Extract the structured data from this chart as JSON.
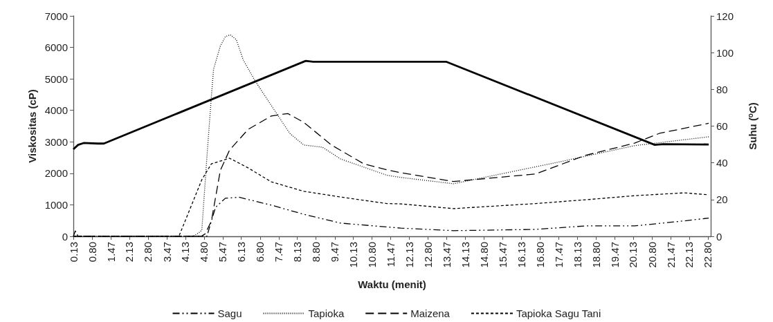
{
  "chart_data": {
    "type": "line",
    "xlabel": "Waktu (menit)",
    "ylabel": "Viskositas (cP)",
    "y2label": "Suhu ($^{o}$C)",
    "xlim": [
      0.13,
      22.9
    ],
    "xticks": [
      0.13,
      {
        "value": 0.8,
        "label": "0.80"
      },
      1.47,
      2.13,
      {
        "value": 2.8,
        "label": "2.80"
      },
      3.47,
      4.13,
      {
        "value": 4.8,
        "label": "4.80"
      },
      5.47,
      6.13,
      {
        "value": 6.8,
        "label": "6.80"
      },
      7.47,
      8.13,
      {
        "value": 8.8,
        "label": "8.80"
      },
      9.47,
      10.13,
      {
        "value": 10.8,
        "label": "10.80"
      },
      11.47,
      12.13,
      {
        "value": 12.8,
        "label": "12.80"
      },
      13.47,
      14.13,
      {
        "value": 14.8,
        "label": "14.80"
      },
      15.47,
      16.13,
      {
        "value": 16.8,
        "label": "16.80"
      },
      17.47,
      18.13,
      {
        "value": 18.8,
        "label": "18.80"
      },
      19.47,
      20.13,
      {
        "value": 20.8,
        "label": "20.80"
      },
      21.47,
      22.13,
      {
        "value": 22.8,
        "label": "22.80"
      }
    ],
    "ylim": [
      0,
      7000
    ],
    "yticks": [
      0,
      1000,
      2000,
      3000,
      4000,
      5000,
      6000,
      7000
    ],
    "y2lim": [
      0,
      120
    ],
    "y2ticks": [
      0,
      20,
      40,
      60,
      80,
      100,
      120
    ],
    "grid": false,
    "legend": "bottom",
    "marker": "none",
    "series": [
      {
        "name": "Sagu",
        "color": "#000000",
        "line_style": "dashdot",
        "x": [
          0.13,
          0.2,
          0.3,
          4.9,
          5.06,
          5.21,
          5.56,
          6.05,
          7.2,
          8.36,
          9.67,
          11.83,
          13.71,
          16.64,
          18.42,
          20.18,
          21.95,
          22.83
        ],
        "values": [
          0,
          170,
          0,
          0,
          480,
          920,
          1210,
          1240,
          990,
          700,
          420,
          260,
          180,
          220,
          330,
          330,
          490,
          580
        ]
      },
      {
        "name": "Tapioka",
        "color": "#000000",
        "line_style": "dotted",
        "x": [
          0.13,
          4.39,
          4.6,
          4.72,
          4.9,
          5.06,
          5.14,
          5.38,
          5.56,
          5.73,
          5.95,
          6.2,
          6.62,
          7.37,
          7.86,
          8.36,
          9.03,
          9.67,
          11.33,
          11.83,
          13.71,
          17.53,
          20.18,
          22.83
        ],
        "values": [
          0,
          0,
          100,
          200,
          2500,
          4430,
          5310,
          6040,
          6340,
          6400,
          6250,
          5600,
          4940,
          3930,
          3270,
          2900,
          2830,
          2460,
          1940,
          1870,
          1670,
          2370,
          2880,
          3160
        ]
      },
      {
        "name": "Maizena",
        "color": "#000000",
        "line_style": "dashed",
        "x": [
          0.13,
          4.7,
          4.84,
          5.06,
          5.38,
          5.71,
          6.38,
          7.2,
          7.79,
          8.36,
          9.35,
          10.51,
          11.33,
          11.83,
          13.71,
          16.64,
          18.42,
          20.18,
          21.07,
          22.83
        ],
        "values": [
          0,
          0,
          80,
          480,
          2090,
          2740,
          3400,
          3820,
          3900,
          3620,
          2900,
          2300,
          2110,
          2020,
          1740,
          1980,
          2570,
          2960,
          3270,
          3590
        ]
      },
      {
        "name": "Tapioka Sagu Tani",
        "color": "#000000",
        "line_style": "shortdash",
        "x": [
          0.13,
          3.9,
          4.32,
          4.72,
          5.06,
          5.71,
          6.38,
          7.2,
          8.36,
          9.67,
          11.33,
          11.83,
          13.71,
          16.64,
          18.42,
          20.18,
          21.95,
          22.83
        ],
        "values": [
          0,
          0,
          920,
          1800,
          2300,
          2480,
          2170,
          1730,
          1430,
          1250,
          1040,
          1030,
          880,
          1040,
          1160,
          1290,
          1380,
          1320
        ]
      },
      {
        "color": "#000000",
        "line_style": "solid",
        "axis": "y2",
        "x": [
          0.13,
          0.3,
          0.5,
          1.0,
          1.22,
          8.43,
          8.7,
          13.46,
          20.9,
          21.2,
          22.83
        ],
        "values": [
          47.4,
          49.8,
          50.8,
          50.5,
          50.5,
          95.5,
          95,
          95,
          49.8,
          50.2,
          50
        ]
      }
    ]
  }
}
